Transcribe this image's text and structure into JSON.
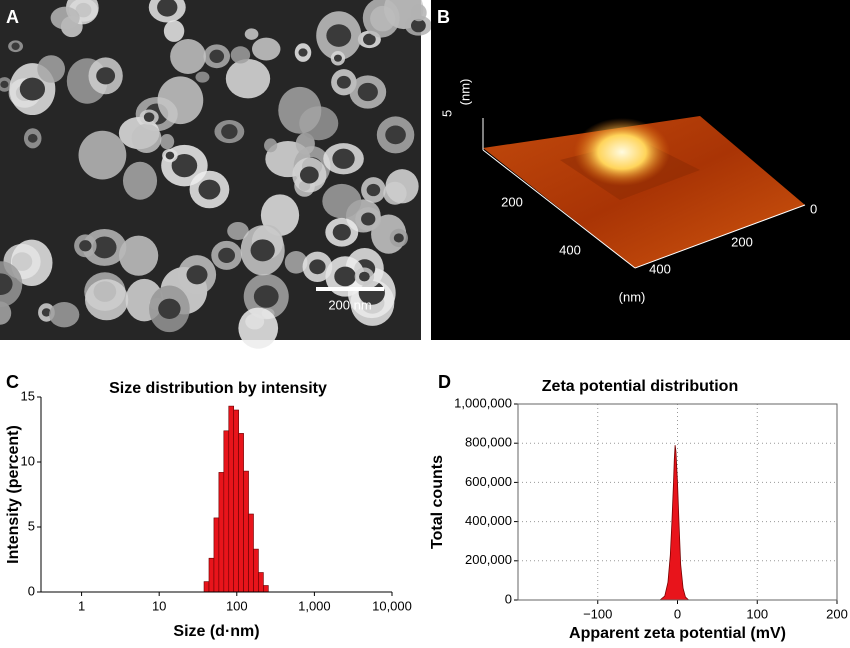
{
  "images": [
    {
      "panel": "A",
      "scale_bar": "200 nm"
    },
    {
      "panel": "B",
      "z_tick": "5",
      "z_unit": "(nm)",
      "left_ticks": [
        "200",
        "400"
      ],
      "front_ticks": [
        "0",
        "200",
        "400"
      ],
      "xy_unit": "(nm)"
    }
  ],
  "chart_data": [
    {
      "type": "histogram",
      "panel": "C",
      "title": "Size distribution by intensity",
      "x_label": "Size (d·nm)",
      "y_label": "Intensity (percent)",
      "log_x": true,
      "color": "#e8141b",
      "bins": [
        37.84,
        43.82,
        50.75,
        58.77,
        68.06,
        78.82,
        91.28,
        105.7,
        122.4,
        141.8,
        164.2,
        190.1,
        220.2,
        255.0
      ],
      "values": [
        0.8,
        2.6,
        5.7,
        9.2,
        12.4,
        14.3,
        14.0,
        12.2,
        9.3,
        6.0,
        3.3,
        1.5,
        0.5
      ],
      "xlim": [
        0.3,
        10000
      ],
      "xticks": [
        1,
        10,
        100,
        {
          "value": 1000,
          "label": "1,000"
        },
        {
          "value": 10000,
          "label": "10,000"
        }
      ],
      "ylim": [
        0,
        15
      ],
      "yticks": [
        0,
        5,
        10,
        15
      ],
      "grid": false
    },
    {
      "type": "area",
      "panel": "D",
      "title": "Zeta potential distribution",
      "x_label": "Apparent zeta potential (mV)",
      "y_label": "Total counts",
      "color": "#e8141b",
      "x": [
        -22,
        -16,
        -12,
        -9,
        -7,
        -5,
        -4,
        -3,
        -2,
        0,
        2,
        4,
        7,
        10,
        14
      ],
      "values": [
        0,
        20000,
        90000,
        230000,
        400000,
        600000,
        720000,
        790000,
        760000,
        600000,
        380000,
        180000,
        60000,
        15000,
        0
      ],
      "xlim": [
        -200,
        200
      ],
      "xticks": [
        {
          "value": -100,
          "label": "−100"
        },
        0,
        100,
        200
      ],
      "ylim": [
        0,
        1000000
      ],
      "yticks": [
        0,
        {
          "value": 200000,
          "label": "200,000"
        },
        {
          "value": 400000,
          "label": "400,000"
        },
        {
          "value": 600000,
          "label": "600,000"
        },
        {
          "value": 800000,
          "label": "800,000"
        },
        {
          "value": 1000000,
          "label": "1,000,000"
        }
      ],
      "grid": true
    }
  ]
}
